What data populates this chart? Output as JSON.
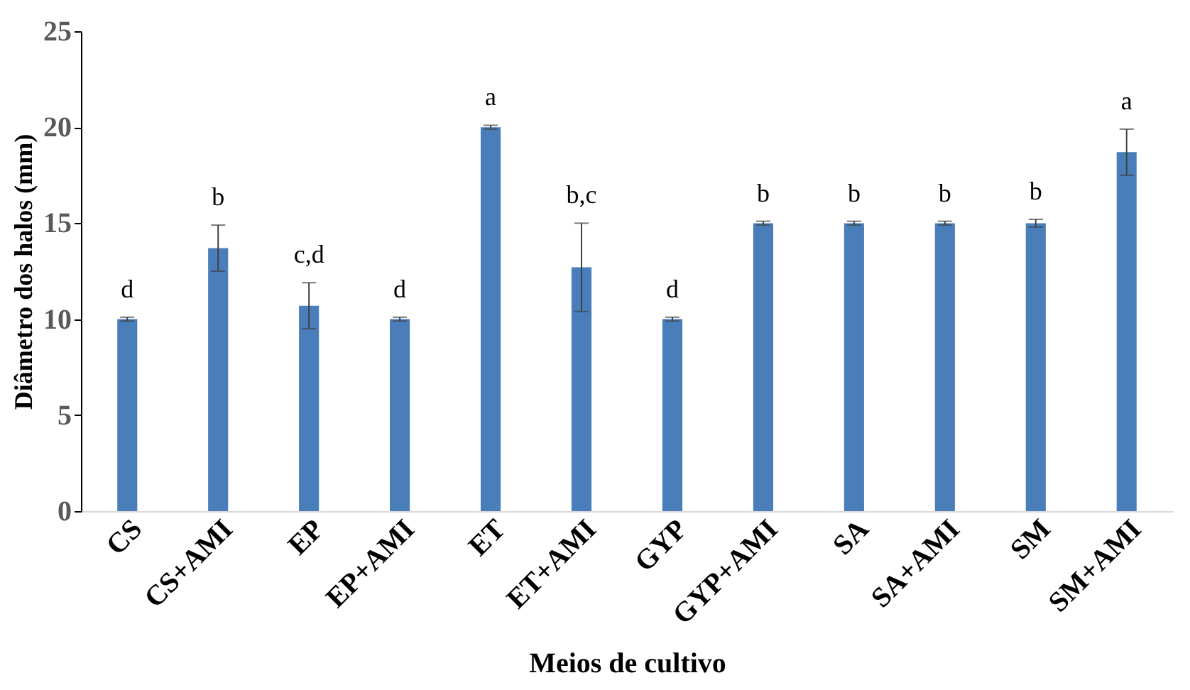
{
  "chart_data": {
    "type": "bar",
    "xlabel": "Meios de cultivo",
    "ylabel": "Diâmetro dos halos (mm)",
    "categories": [
      "CS",
      "CS+AMI",
      "EP",
      "EP+AMI",
      "ET",
      "ET+AMI",
      "GYP",
      "GYP+AMI",
      "SA",
      "SA+AMI",
      "SM",
      "SM+AMI"
    ],
    "values": [
      10,
      13.7,
      10.7,
      10,
      20,
      12.7,
      10,
      15,
      15,
      15,
      15,
      18.7
    ],
    "errors": [
      0.1,
      1.2,
      1.2,
      0.1,
      0.1,
      2.3,
      0.1,
      0.1,
      0.1,
      0.1,
      0.2,
      1.2
    ],
    "color": "#4a7ebb",
    "ylim": [
      0,
      25
    ],
    "yticks": [
      0,
      5,
      10,
      15,
      20,
      25
    ],
    "grid": false,
    "annotations": [
      {
        "text": "d",
        "x": "CS",
        "y": 10
      },
      {
        "text": "b",
        "x": "CS+AMI",
        "y": 13.7
      },
      {
        "text": "c,d",
        "x": "EP",
        "y": 10.7
      },
      {
        "text": "d",
        "x": "EP+AMI",
        "y": 10
      },
      {
        "text": "a",
        "x": "ET",
        "y": 20
      },
      {
        "text": "b,c",
        "x": "ET+AMI",
        "y": 12.7
      },
      {
        "text": "d",
        "x": "GYP",
        "y": 10
      },
      {
        "text": "b",
        "x": "GYP+AMI",
        "y": 15
      },
      {
        "text": "b",
        "x": "SA",
        "y": 15
      },
      {
        "text": "b",
        "x": "SA+AMI",
        "y": 15
      },
      {
        "text": "b",
        "x": "SM",
        "y": 15
      },
      {
        "text": "a",
        "x": "SM+AMI",
        "y": 18.7
      }
    ]
  }
}
